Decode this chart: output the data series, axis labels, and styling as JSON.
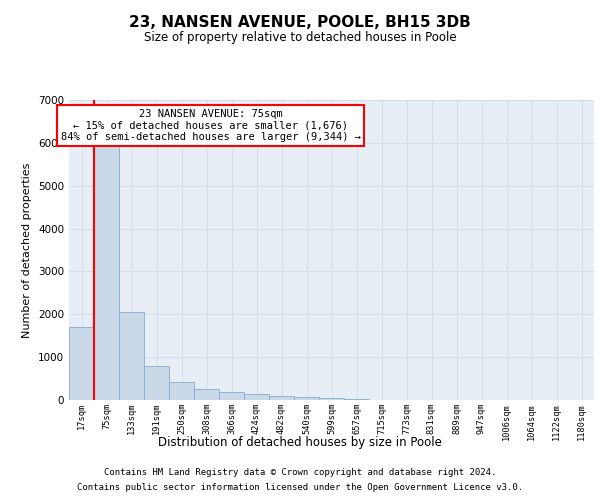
{
  "title": "23, NANSEN AVENUE, POOLE, BH15 3DB",
  "subtitle": "Size of property relative to detached houses in Poole",
  "xlabel": "Distribution of detached houses by size in Poole",
  "ylabel": "Number of detached properties",
  "bar_labels": [
    "17sqm",
    "75sqm",
    "133sqm",
    "191sqm",
    "250sqm",
    "308sqm",
    "366sqm",
    "424sqm",
    "482sqm",
    "540sqm",
    "599sqm",
    "657sqm",
    "715sqm",
    "773sqm",
    "831sqm",
    "889sqm",
    "947sqm",
    "1006sqm",
    "1064sqm",
    "1122sqm",
    "1180sqm"
  ],
  "bar_values": [
    1700,
    6050,
    2050,
    800,
    420,
    260,
    185,
    130,
    100,
    75,
    50,
    18,
    0,
    0,
    0,
    0,
    0,
    0,
    0,
    0,
    0
  ],
  "bar_color": "#c9d9ea",
  "bar_edge_color": "#8aaac8",
  "highlight_line_color": "red",
  "highlight_bar_index": 1,
  "ylim": [
    0,
    7000
  ],
  "yticks": [
    0,
    1000,
    2000,
    3000,
    4000,
    5000,
    6000,
    7000
  ],
  "annotation_text": "23 NANSEN AVENUE: 75sqm\n← 15% of detached houses are smaller (1,676)\n84% of semi-detached houses are larger (9,344) →",
  "annotation_box_color": "white",
  "annotation_box_edge": "red",
  "footer_line1": "Contains HM Land Registry data © Crown copyright and database right 2024.",
  "footer_line2": "Contains public sector information licensed under the Open Government Licence v3.0.",
  "grid_color": "#d0dce8",
  "plot_bg_color": "#e8eef6",
  "fig_bg_color": "#ffffff"
}
